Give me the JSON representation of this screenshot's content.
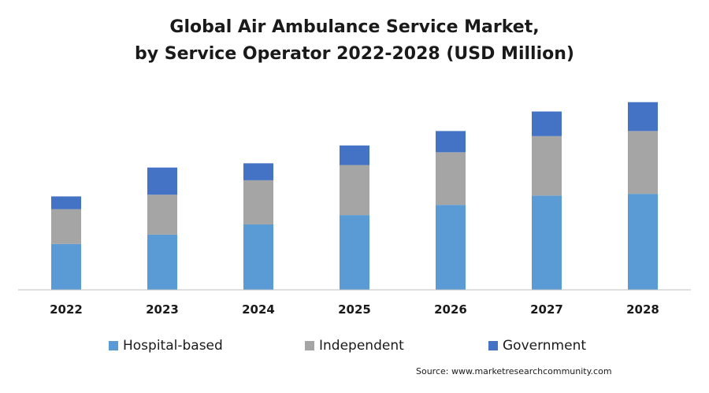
{
  "chart_data": {
    "type": "bar",
    "stacked": true,
    "title_lines": [
      "Global Air Ambulance Service Market,",
      "by Service Operator 2022-2028 (USD Million)"
    ],
    "categories": [
      "2022",
      "2023",
      "2024",
      "2025",
      "2026",
      "2027",
      "2028"
    ],
    "series": [
      {
        "name": "Hospital-based",
        "color": "#5b9bd5",
        "values": [
          54,
          65,
          77,
          88,
          100,
          111,
          113
        ]
      },
      {
        "name": "Independent",
        "color": "#a5a5a5",
        "values": [
          41,
          47,
          52,
          59,
          62,
          70,
          74
        ]
      },
      {
        "name": "Government",
        "color": "#4472c4",
        "values": [
          15,
          32,
          20,
          23,
          25,
          29,
          34
        ]
      }
    ],
    "xlabel": "",
    "ylabel": "",
    "ylim": [
      0,
      230
    ],
    "grid": false,
    "legend_position": "bottom"
  },
  "source": "Source: www.marketresearchcommunity.com"
}
